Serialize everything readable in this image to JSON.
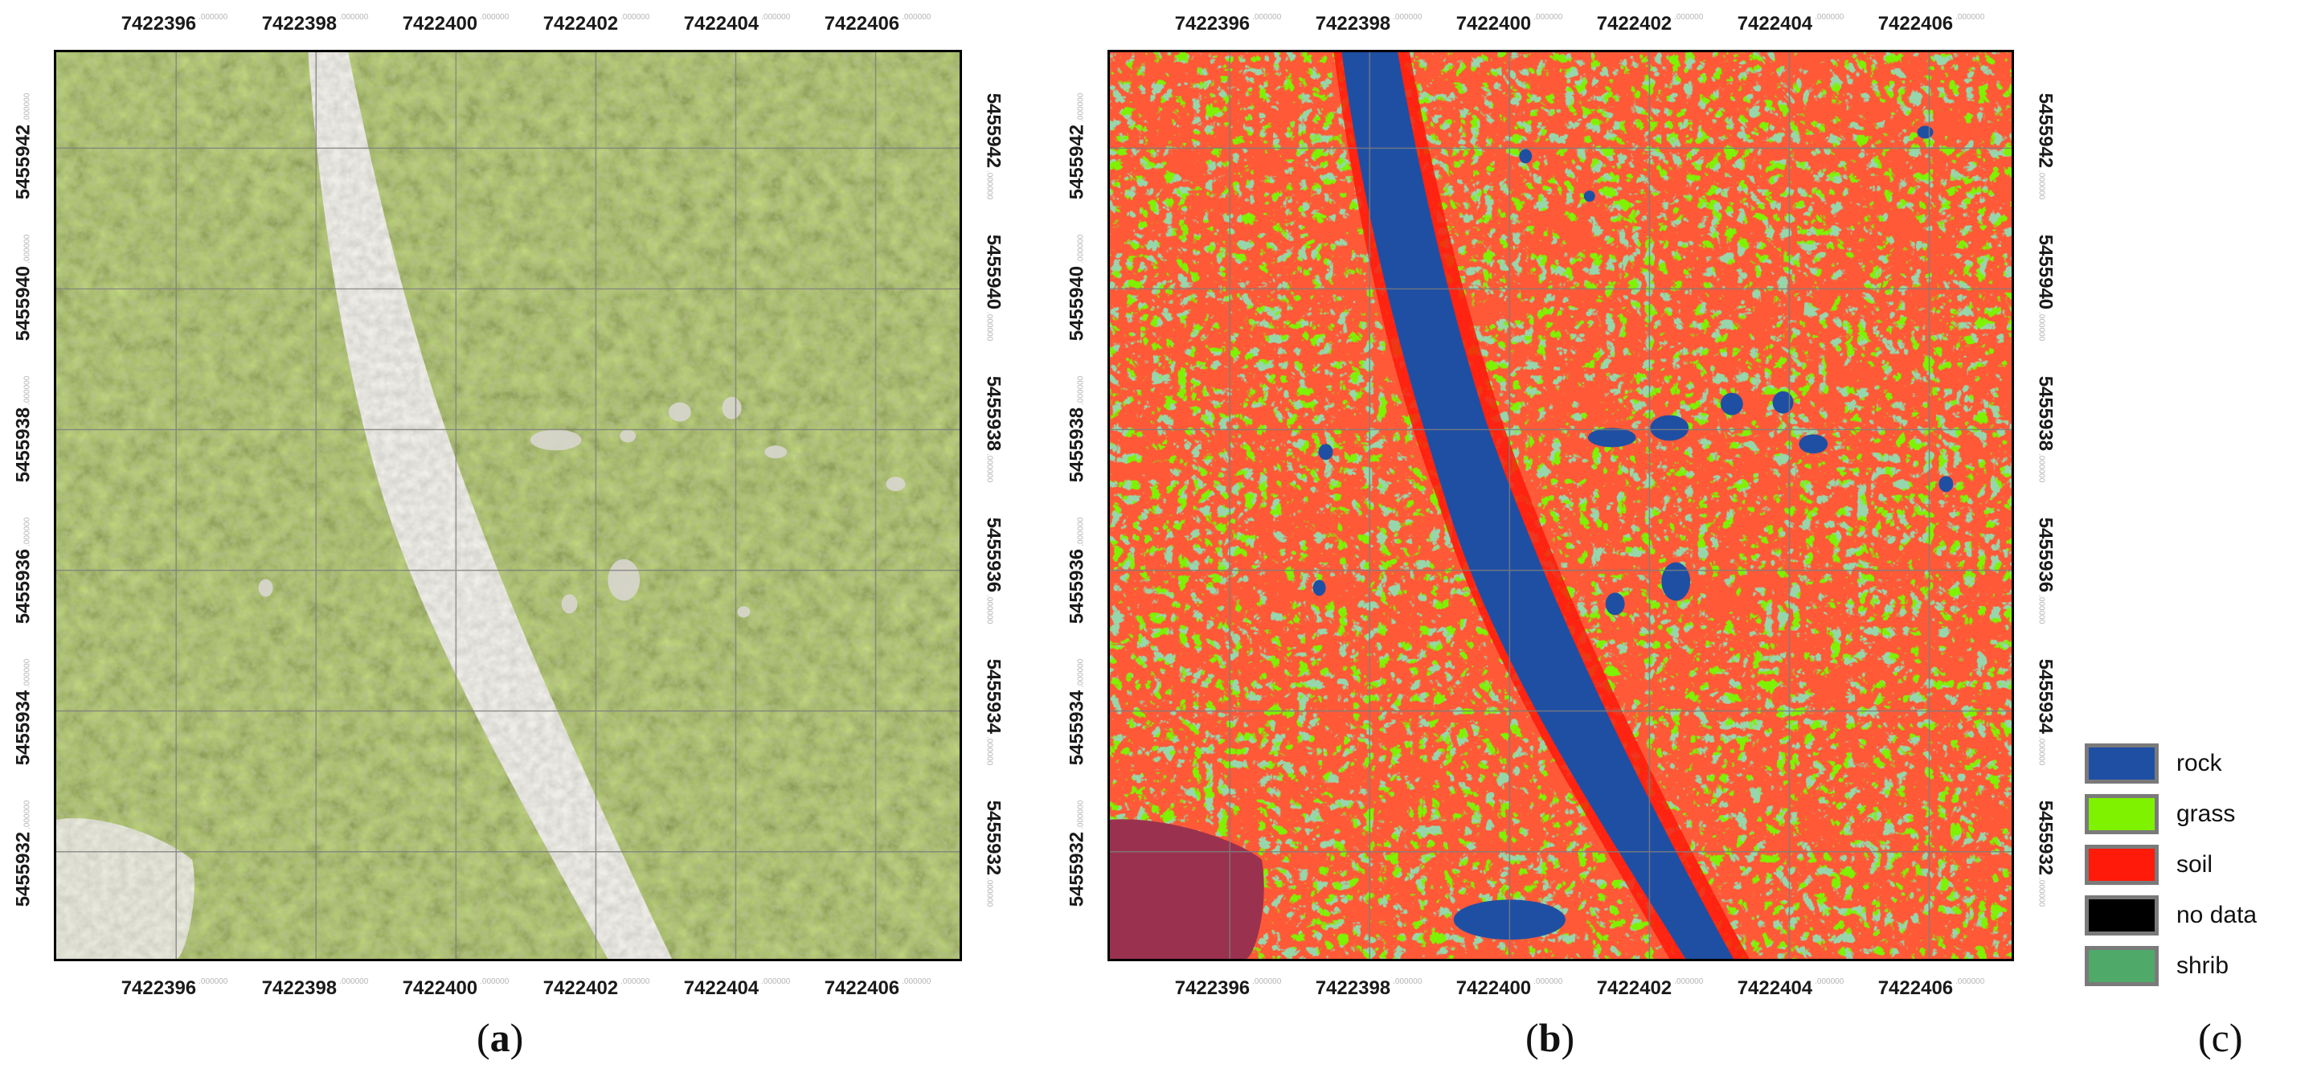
{
  "panels": [
    {
      "id": "a",
      "caption": "a",
      "x_ticks": [
        "7422396",
        "7422398",
        "7422400",
        "7422402",
        "7422404",
        "7422406"
      ],
      "x_tick_decimals": ".000000",
      "y_ticks": [
        "5455942",
        "5455940",
        "5455938",
        "5455936",
        "5455934",
        "5455932"
      ],
      "y_tick_decimals": ".000000",
      "content": "aerial orthophoto"
    },
    {
      "id": "b",
      "caption": "b",
      "x_ticks": [
        "7422396",
        "7422398",
        "7422400",
        "7422402",
        "7422404",
        "7422406"
      ],
      "x_tick_decimals": ".000000",
      "y_ticks": [
        "5455942",
        "5455940",
        "5455938",
        "5455936",
        "5455934",
        "5455932"
      ],
      "y_tick_decimals": ".000000",
      "content": "classification map"
    }
  ],
  "legend": {
    "caption": "c",
    "items": [
      {
        "label": "rock",
        "color": "#1f4fa3"
      },
      {
        "label": "grass",
        "color": "#7ff200"
      },
      {
        "label": "soil",
        "color": "#ff1a0a"
      },
      {
        "label": "no data",
        "color": "#000000"
      },
      {
        "label": "shrib",
        "color": "#4faa6a"
      }
    ]
  },
  "colors": {
    "grid": "#7d7d7d",
    "vegetation_dark": "#5e6b33",
    "vegetation_light": "#8a9a4a",
    "rock_path": "#c9c6bd"
  }
}
